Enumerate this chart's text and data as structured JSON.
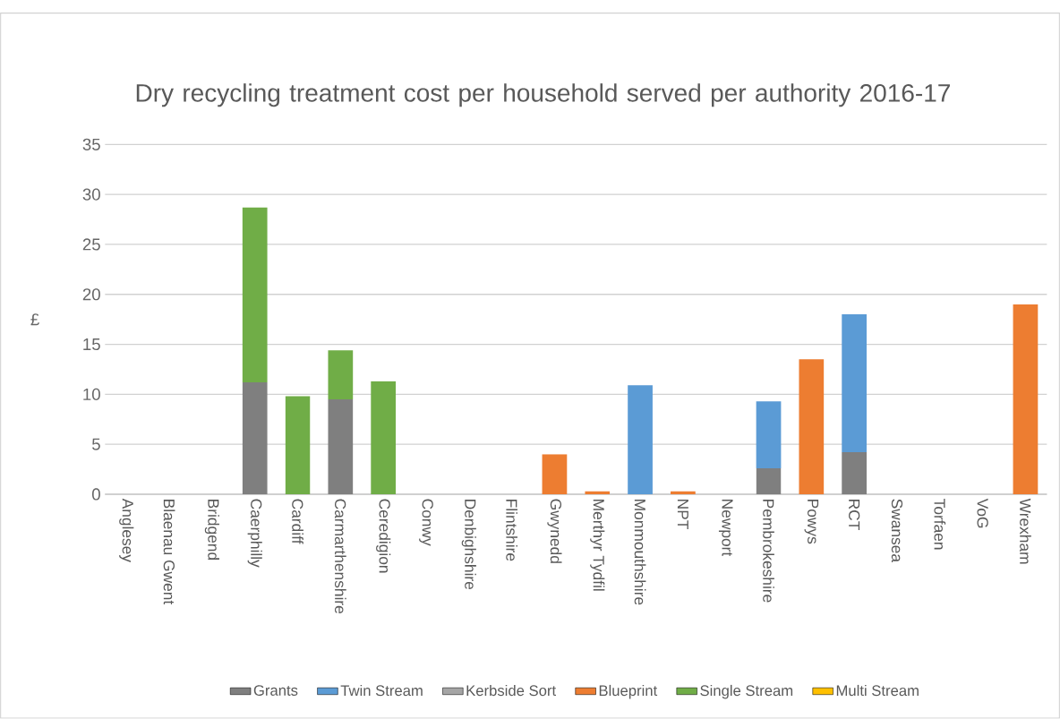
{
  "chart_data": {
    "type": "bar",
    "title": "Dry recycling treatment cost per household served per authority 2016-17",
    "ylabel": "£",
    "categories": [
      "Anglesey",
      "Blaenau Gwent",
      "Bridgend",
      "Caerphilly",
      "Cardiff",
      "Carmarthenshire",
      "Ceredigion",
      "Conwy",
      "Denbighshire",
      "Flintshire",
      "Gwynedd",
      "Merthyr Tydfil",
      "Monmouthshire",
      "NPT",
      "Newport",
      "Pembrokeshire",
      "Powys",
      "RCT",
      "Swansea",
      "Torfaen",
      "VoG",
      "Wrexham"
    ],
    "series": [
      {
        "name": "Grants",
        "color": "#7f7f7f",
        "values": [
          null,
          null,
          null,
          11.2,
          null,
          9.5,
          null,
          null,
          null,
          null,
          null,
          null,
          null,
          null,
          null,
          2.6,
          null,
          4.2,
          null,
          null,
          null,
          null
        ]
      },
      {
        "name": "Twin Stream",
        "color": "#5b9bd5",
        "values": [
          null,
          null,
          null,
          null,
          null,
          null,
          null,
          null,
          null,
          null,
          null,
          null,
          10.9,
          null,
          null,
          6.7,
          null,
          13.8,
          null,
          null,
          null,
          null
        ]
      },
      {
        "name": "Kerbside Sort",
        "color": "#a5a5a5",
        "values": [
          null,
          null,
          null,
          null,
          null,
          null,
          null,
          null,
          null,
          null,
          null,
          null,
          null,
          null,
          null,
          null,
          null,
          null,
          null,
          null,
          null,
          null
        ]
      },
      {
        "name": "Blueprint",
        "color": "#ed7d31",
        "values": [
          null,
          null,
          null,
          null,
          null,
          null,
          null,
          null,
          null,
          null,
          4.0,
          0.3,
          null,
          0.3,
          null,
          null,
          13.5,
          null,
          null,
          null,
          null,
          19.0
        ]
      },
      {
        "name": "Single Stream",
        "color": "#70ad47",
        "values": [
          null,
          null,
          null,
          17.5,
          9.8,
          4.9,
          11.3,
          null,
          null,
          null,
          null,
          null,
          null,
          null,
          null,
          null,
          null,
          null,
          null,
          null,
          null,
          null
        ]
      },
      {
        "name": "Multi Stream",
        "color": "#ffc000",
        "values": [
          null,
          null,
          null,
          null,
          null,
          null,
          null,
          null,
          null,
          null,
          null,
          null,
          null,
          null,
          null,
          null,
          null,
          null,
          null,
          null,
          null,
          null
        ]
      }
    ],
    "stacked": true,
    "ylim": [
      0,
      35
    ],
    "yticks": [
      0,
      5,
      10,
      15,
      20,
      25,
      30,
      35
    ],
    "grid": "y",
    "legend": "bottom"
  }
}
